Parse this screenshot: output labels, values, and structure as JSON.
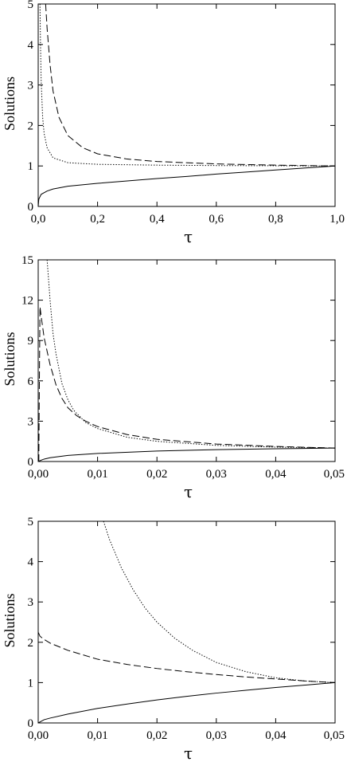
{
  "chart_data": [
    {
      "type": "line",
      "xlabel": "τ",
      "ylabel": "Solutions",
      "xlim": [
        0,
        1
      ],
      "ylim": [
        0,
        5
      ],
      "xticks": [
        "0,0",
        "0,2",
        "0,4",
        "0,6",
        "0,8",
        "1,0"
      ],
      "yticks": [
        "0",
        "1",
        "2",
        "3",
        "4",
        "5"
      ],
      "series": [
        {
          "style": "solid",
          "x": [
            0.0,
            0.002,
            0.01,
            0.03,
            0.05,
            0.1,
            0.2,
            0.3,
            0.4,
            0.5,
            0.6,
            0.7,
            0.8,
            0.9,
            1.0
          ],
          "y": [
            0.0,
            0.18,
            0.3,
            0.38,
            0.43,
            0.5,
            0.57,
            0.63,
            0.69,
            0.74,
            0.8,
            0.85,
            0.9,
            0.95,
            1.0
          ]
        },
        {
          "style": "dashed",
          "x": [
            0.025,
            0.03,
            0.04,
            0.05,
            0.07,
            0.1,
            0.15,
            0.2,
            0.3,
            0.4,
            0.6,
            0.8,
            1.0
          ],
          "y": [
            5.0,
            4.4,
            3.5,
            2.85,
            2.2,
            1.75,
            1.45,
            1.3,
            1.17,
            1.11,
            1.05,
            1.02,
            1.0
          ]
        },
        {
          "style": "dotted",
          "x": [
            0.006,
            0.008,
            0.01,
            0.015,
            0.02,
            0.03,
            0.05,
            0.1,
            0.2,
            0.4,
            0.6,
            0.8,
            1.0
          ],
          "y": [
            5.0,
            3.9,
            3.1,
            2.2,
            1.8,
            1.45,
            1.2,
            1.08,
            1.04,
            1.02,
            1.01,
            1.005,
            1.0
          ]
        }
      ]
    },
    {
      "type": "line",
      "xlabel": "τ",
      "ylabel": "Solutions",
      "xlim": [
        0,
        0.05
      ],
      "ylim": [
        0,
        15
      ],
      "xticks": [
        "0,00",
        "0,01",
        "0,02",
        "0,03",
        "0,04",
        "0,05"
      ],
      "yticks": [
        "0",
        "3",
        "6",
        "9",
        "12",
        "15"
      ],
      "series": [
        {
          "style": "solid",
          "x": [
            0.0,
            0.0005,
            0.001,
            0.002,
            0.005,
            0.01,
            0.02,
            0.03,
            0.04,
            0.05
          ],
          "y": [
            0.0,
            0.1,
            0.18,
            0.28,
            0.45,
            0.6,
            0.78,
            0.88,
            0.95,
            1.0
          ]
        },
        {
          "style": "dashed",
          "x": [
            0.0001,
            0.0002,
            0.0003,
            0.0005,
            0.001,
            0.002,
            0.003,
            0.004,
            0.005,
            0.0065,
            0.008,
            0.01,
            0.015,
            0.02,
            0.03,
            0.04,
            0.05
          ],
          "y": [
            0.0,
            6.0,
            11.5,
            10.8,
            9.2,
            7.2,
            5.7,
            4.7,
            4.0,
            3.4,
            3.0,
            2.6,
            2.0,
            1.65,
            1.3,
            1.12,
            1.0
          ]
        },
        {
          "style": "dotted",
          "x": [
            0.0015,
            0.002,
            0.0025,
            0.003,
            0.004,
            0.005,
            0.006,
            0.008,
            0.01,
            0.015,
            0.02,
            0.03,
            0.04,
            0.05
          ],
          "y": [
            15.0,
            12.0,
            9.5,
            8.0,
            5.8,
            4.6,
            3.8,
            2.9,
            2.45,
            1.8,
            1.5,
            1.2,
            1.07,
            1.0
          ]
        }
      ]
    },
    {
      "type": "line",
      "xlabel": "τ",
      "ylabel": "Solutions",
      "xlim": [
        0,
        0.05
      ],
      "ylim": [
        0,
        5
      ],
      "xticks": [
        "0,00",
        "0,01",
        "0,02",
        "0,03",
        "0,04",
        "0,05"
      ],
      "yticks": [
        "0",
        "1",
        "2",
        "3",
        "4",
        "5"
      ],
      "series": [
        {
          "style": "solid",
          "x": [
            0.0,
            0.001,
            0.002,
            0.005,
            0.01,
            0.015,
            0.02,
            0.025,
            0.03,
            0.035,
            0.04,
            0.045,
            0.05
          ],
          "y": [
            0.0,
            0.08,
            0.12,
            0.22,
            0.36,
            0.47,
            0.57,
            0.66,
            0.74,
            0.81,
            0.88,
            0.94,
            1.0
          ]
        },
        {
          "style": "dashed",
          "x": [
            0.0,
            0.0003,
            0.001,
            0.002,
            0.005,
            0.01,
            0.015,
            0.02,
            0.025,
            0.03,
            0.035,
            0.04,
            0.045,
            0.05
          ],
          "y": [
            2.25,
            2.15,
            2.07,
            1.98,
            1.8,
            1.58,
            1.45,
            1.35,
            1.27,
            1.2,
            1.14,
            1.09,
            1.04,
            1.0
          ]
        },
        {
          "style": "dotted",
          "x": [
            0.011,
            0.012,
            0.014,
            0.016,
            0.018,
            0.02,
            0.023,
            0.026,
            0.03,
            0.035,
            0.04,
            0.045,
            0.05
          ],
          "y": [
            5.0,
            4.55,
            3.85,
            3.3,
            2.85,
            2.5,
            2.1,
            1.8,
            1.5,
            1.27,
            1.12,
            1.04,
            1.0
          ]
        }
      ]
    }
  ]
}
